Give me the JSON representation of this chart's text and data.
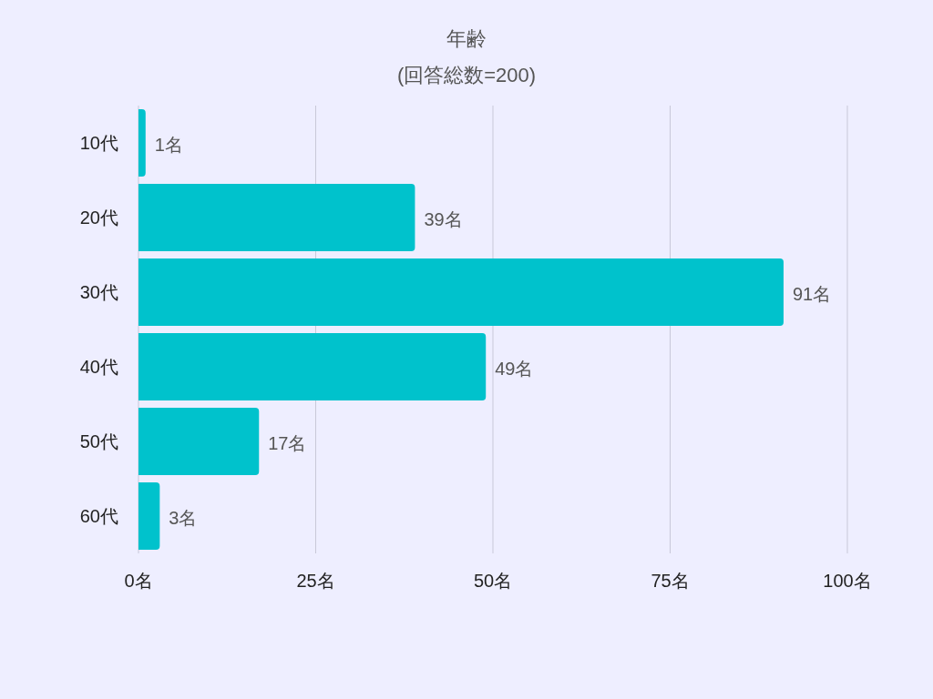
{
  "chart_data": {
    "type": "bar",
    "orientation": "horizontal",
    "title": "年齢",
    "subtitle": "(回答総数=200)",
    "categories": [
      "10代",
      "20代",
      "30代",
      "40代",
      "50代",
      "60代"
    ],
    "values": [
      1,
      39,
      91,
      49,
      17,
      3
    ],
    "color": "#00c2cc",
    "value_labels": [
      "1名",
      "39名",
      "91名",
      "49名",
      "17名",
      "3名"
    ],
    "xlim": [
      0,
      100
    ],
    "xticks": [
      {
        "value": 0,
        "label": "0名"
      },
      {
        "value": 25,
        "label": "25名"
      },
      {
        "value": 50,
        "label": "50名"
      },
      {
        "value": 75,
        "label": "75名"
      },
      {
        "value": 100,
        "label": "100名"
      }
    ],
    "grid": "x"
  }
}
